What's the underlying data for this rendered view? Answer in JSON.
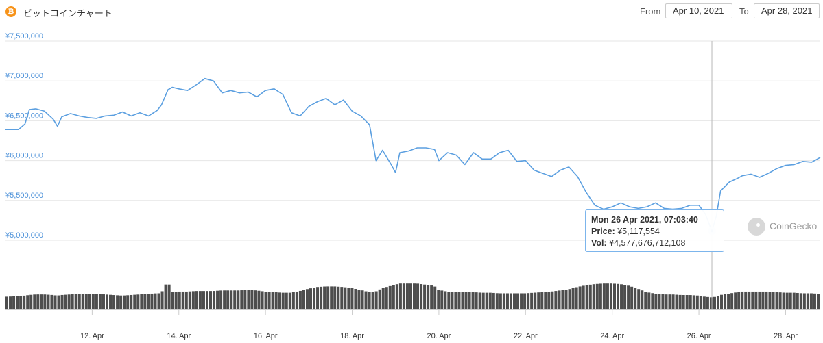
{
  "header": {
    "title": "ビットコインチャート",
    "coin_icon": "bitcoin-icon",
    "from_label": "From",
    "from_value": "Apr 10, 2021",
    "to_label": "To",
    "to_value": "Apr 28, 2021"
  },
  "tooltip": {
    "datetime": "Mon 26 Apr 2021, 07:03:40",
    "price_label": "Price:",
    "price_value": "¥5,117,554",
    "vol_label": "Vol:",
    "vol_value": "¥4,577,676,712,108"
  },
  "watermark": {
    "text": "CoinGecko",
    "icon": "coingecko-icon"
  },
  "colors": {
    "price_line": "#5b9fe0",
    "volume_bar": "#4d4d4d",
    "ytick": "#4a90d9",
    "crosshair": "#b8b8b8",
    "grid": "#e6e6e6"
  },
  "chart_data": {
    "type": "line",
    "title": "ビットコインチャート",
    "x_unit": "day of April 2021",
    "xlim": [
      10,
      28.8
    ],
    "ylim": [
      5000000,
      7500000
    ],
    "y_ticks": [
      "¥7,500,000",
      "¥7,000,000",
      "¥6,500,000",
      "¥6,000,000",
      "¥5,500,000",
      "¥5,000,000"
    ],
    "y_tick_values": [
      7500000,
      7000000,
      6500000,
      6000000,
      5500000,
      5000000
    ],
    "x_ticks": [
      "12. Apr",
      "14. Apr",
      "16. Apr",
      "18. Apr",
      "20. Apr",
      "22. Apr",
      "24. Apr",
      "26. Apr",
      "28. Apr"
    ],
    "x_tick_values": [
      12,
      14,
      16,
      18,
      20,
      22,
      24,
      26,
      28
    ],
    "highlight": {
      "x": 26.3,
      "y": 5117554
    },
    "series": [
      {
        "x": [
          10.0,
          10.3,
          10.45,
          10.55,
          10.7,
          10.9,
          11.1,
          11.2,
          11.3,
          11.5,
          11.7,
          11.9,
          12.1,
          12.3,
          12.5,
          12.7,
          12.9,
          13.1,
          13.3,
          13.5,
          13.6,
          13.75,
          13.85,
          14.0,
          14.2,
          14.4,
          14.6,
          14.8,
          15.0,
          15.2,
          15.4,
          15.6,
          15.8,
          16.0,
          16.2,
          16.4,
          16.6,
          16.8,
          17.0,
          17.2,
          17.4,
          17.6,
          17.8,
          18.0,
          18.2,
          18.4,
          18.55,
          18.7,
          18.9,
          19.0,
          19.1,
          19.3,
          19.5,
          19.7,
          19.9,
          20.0,
          20.2,
          20.4,
          20.6,
          20.8,
          21.0,
          21.2,
          21.4,
          21.6,
          21.8,
          22.0,
          22.2,
          22.4,
          22.6,
          22.8,
          23.0,
          23.2,
          23.4,
          23.6,
          23.8,
          24.0,
          24.2,
          24.4,
          24.6,
          24.8,
          25.0,
          25.2,
          25.4,
          25.6,
          25.8,
          26.0,
          26.15,
          26.3,
          26.4,
          26.5,
          26.7,
          26.9,
          27.0,
          27.2,
          27.4,
          27.6,
          27.8,
          28.0,
          28.2,
          28.4,
          28.6,
          28.8
        ],
        "y": [
          6390000,
          6390000,
          6460000,
          6640000,
          6650000,
          6620000,
          6520000,
          6430000,
          6550000,
          6590000,
          6560000,
          6540000,
          6530000,
          6560000,
          6570000,
          6610000,
          6560000,
          6600000,
          6560000,
          6630000,
          6700000,
          6890000,
          6920000,
          6900000,
          6880000,
          6950000,
          7030000,
          7000000,
          6850000,
          6880000,
          6850000,
          6860000,
          6800000,
          6880000,
          6900000,
          6830000,
          6600000,
          6560000,
          6680000,
          6740000,
          6780000,
          6700000,
          6760000,
          6620000,
          6560000,
          6450000,
          6000000,
          6130000,
          5950000,
          5850000,
          6100000,
          6120000,
          6160000,
          6160000,
          6140000,
          6000000,
          6100000,
          6070000,
          5950000,
          6100000,
          6020000,
          6020000,
          6100000,
          6130000,
          5990000,
          6000000,
          5880000,
          5840000,
          5800000,
          5880000,
          5920000,
          5800000,
          5600000,
          5440000,
          5390000,
          5420000,
          5470000,
          5420000,
          5400000,
          5420000,
          5470000,
          5400000,
          5390000,
          5400000,
          5440000,
          5440000,
          5330000,
          5117554,
          5300000,
          5620000,
          5730000,
          5780000,
          5810000,
          5830000,
          5790000,
          5840000,
          5900000,
          5940000,
          5950000,
          5990000,
          5980000,
          6040000
        ],
        "volume_relative": [
          0.44,
          0.46,
          0.48,
          0.5,
          0.52,
          0.52,
          0.5,
          0.48,
          0.5,
          0.52,
          0.54,
          0.54,
          0.54,
          0.52,
          0.5,
          0.48,
          0.5,
          0.52,
          0.54,
          0.56,
          0.56,
          1.0,
          0.6,
          0.62,
          0.62,
          0.64,
          0.64,
          0.64,
          0.66,
          0.66,
          0.66,
          0.68,
          0.66,
          0.62,
          0.6,
          0.58,
          0.58,
          0.64,
          0.72,
          0.78,
          0.8,
          0.8,
          0.78,
          0.74,
          0.68,
          0.6,
          0.62,
          0.74,
          0.82,
          0.86,
          0.9,
          0.9,
          0.9,
          0.86,
          0.82,
          0.68,
          0.62,
          0.6,
          0.6,
          0.6,
          0.58,
          0.58,
          0.56,
          0.56,
          0.56,
          0.56,
          0.58,
          0.6,
          0.62,
          0.66,
          0.7,
          0.78,
          0.84,
          0.88,
          0.9,
          0.9,
          0.88,
          0.82,
          0.72,
          0.6,
          0.55,
          0.52,
          0.52,
          0.5,
          0.5,
          0.48,
          0.44,
          0.42,
          0.44,
          0.5,
          0.55,
          0.6,
          0.62,
          0.62,
          0.62,
          0.62,
          0.6,
          0.58,
          0.58,
          0.56,
          0.56,
          0.54
        ]
      }
    ]
  }
}
